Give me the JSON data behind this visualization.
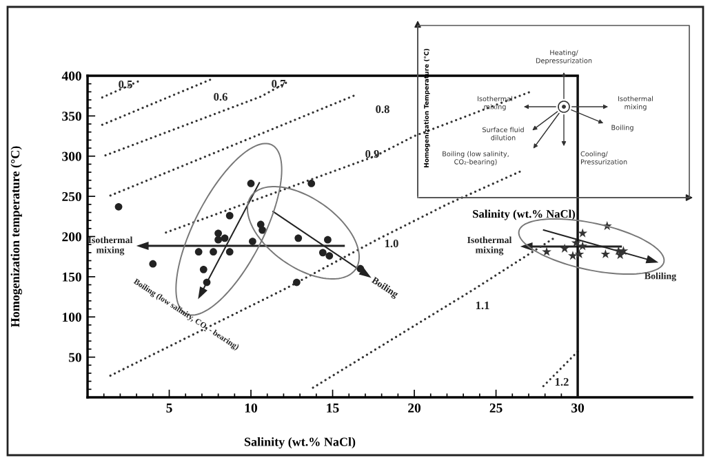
{
  "chart_data": [
    {
      "type": "scatter",
      "xlabel": "Salinity (wt.% NaCl)",
      "ylabel": "Homogenization temperature (°C)",
      "xlim": [
        0,
        37
      ],
      "ylim": [
        0,
        400
      ],
      "xticks": [
        5,
        10,
        15,
        20,
        25,
        30
      ],
      "yticks": [
        50,
        100,
        150,
        200,
        250,
        300,
        350,
        400
      ],
      "grid": false,
      "legend": false,
      "series": [
        {
          "type": "scatter",
          "marker": "circle",
          "color": "#222222",
          "x": [
            1.9,
            10.0,
            13.7,
            8.7,
            10.6,
            10.7,
            8.0,
            8.0,
            8.4,
            10.1,
            12.9,
            14.7,
            6.8,
            7.7,
            8.7,
            14.4,
            14.8,
            4.0,
            7.1,
            7.3,
            12.8,
            16.7
          ],
          "values": [
            237,
            266,
            266,
            226,
            215,
            208,
            204,
            196,
            198,
            194,
            198,
            196,
            181,
            181,
            181,
            180,
            176,
            166,
            159,
            143,
            143,
            160
          ]
        },
        {
          "type": "scatter",
          "marker": "star",
          "color": "#333333",
          "x": [
            31.8,
            30.3,
            29.9,
            30.3,
            29.2,
            28.1,
            30.1,
            29.7,
            31.7,
            32.5,
            32.8,
            32.6
          ],
          "values": [
            213,
            204,
            192,
            188,
            185,
            181,
            178,
            176,
            178,
            182,
            182,
            177
          ]
        },
        {
          "type": "line",
          "line_style": "dotted",
          "marker": "none",
          "color": "#333333",
          "x": [
            0.9,
            3.1
          ],
          "values": [
            373,
            393
          ]
        },
        {
          "type": "line",
          "line_style": "dotted",
          "marker": "none",
          "color": "#333333",
          "x": [
            0.9,
            7.5
          ],
          "values": [
            339,
            395
          ]
        },
        {
          "type": "line",
          "line_style": "dotted",
          "marker": "none",
          "color": "#333333",
          "x": [
            1.1,
            10.6,
            12.3
          ],
          "values": [
            301,
            374,
            393
          ]
        },
        {
          "type": "line",
          "line_style": "dotted",
          "marker": "none",
          "color": "#333333",
          "x": [
            1.4,
            16.4
          ],
          "values": [
            251,
            376
          ]
        },
        {
          "type": "line",
          "line_style": "dotted",
          "marker": "none",
          "color": "#333333",
          "x": [
            4.8,
            17.6,
            20.0,
            27.1
          ],
          "values": [
            205,
            300,
            325,
            380
          ]
        },
        {
          "type": "line",
          "line_style": "dotted",
          "marker": "none",
          "color": "#333333",
          "x": [
            1.4,
            12.1,
            17.8,
            22.0,
            26.6
          ],
          "values": [
            27,
            135,
            197,
            240,
            282
          ]
        },
        {
          "type": "line",
          "line_style": "dotted",
          "marker": "none",
          "color": "#333333",
          "x": [
            13.8,
            23.7,
            28.7
          ],
          "values": [
            12,
            135,
            200
          ]
        },
        {
          "type": "line",
          "line_style": "dotted",
          "marker": "none",
          "color": "#333333",
          "x": [
            27.9,
            30.0
          ],
          "values": [
            14,
            57
          ]
        }
      ],
      "ref_lines": [
        {
          "axis": "x",
          "value": 30,
          "color": "#111111",
          "line_style": "solid"
        }
      ],
      "annotations": [
        "0.5",
        "0.6",
        "0.7",
        "0.8",
        "0.9",
        "1.0",
        "1.1",
        "1.2",
        "Isothermal\nmixing",
        "Boiling (low salinity, CO₂ - bearing)",
        "Boiling",
        "Isothermal\nmixing",
        "Boliling"
      ]
    },
    {
      "type": "other",
      "xlabel": "Salinity (wt.% NaCl)",
      "ylabel": "Homogenization Temperature (°C)",
      "annotations": [
        "Heating/\nDepressurization",
        "Isothermal\nmixing",
        "Isothermal\nmixing",
        "Boiling",
        "Surface fluid\ndilution",
        "Boiling (low salinity,\nCO₂-bearing)",
        "Cooling/\nPressurization"
      ]
    }
  ]
}
